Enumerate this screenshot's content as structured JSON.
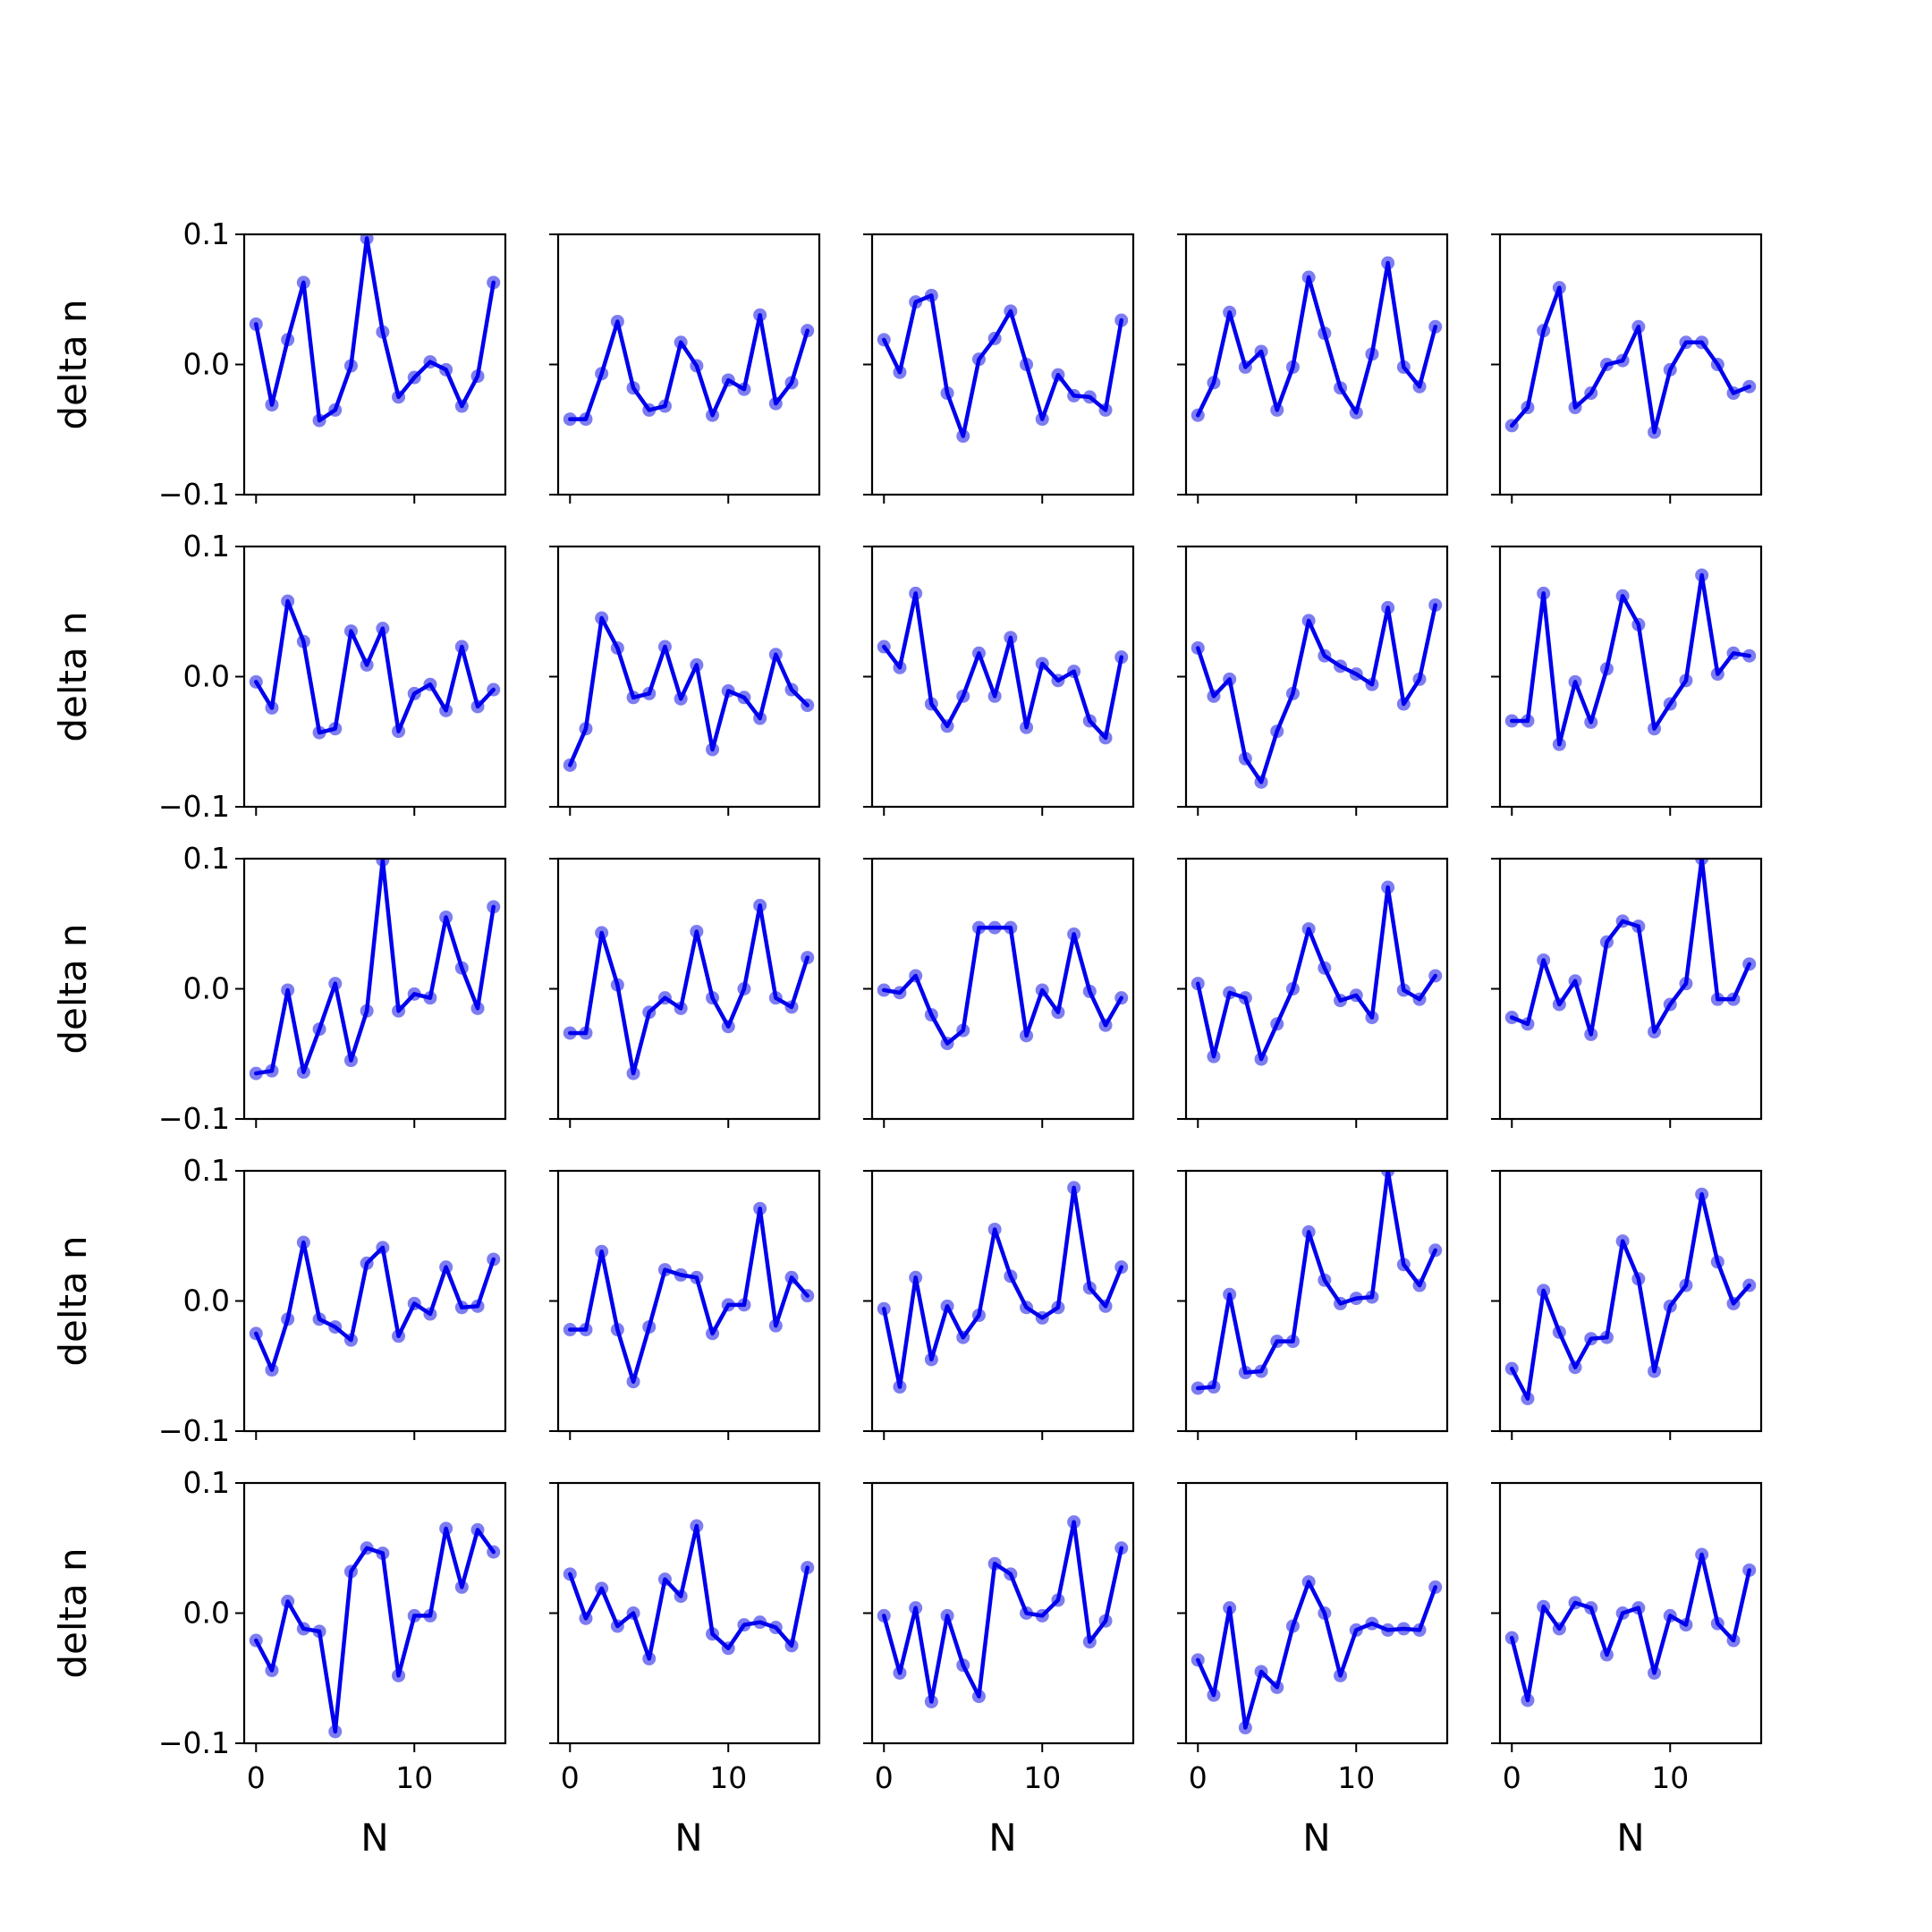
{
  "chart_data": {
    "type": "line",
    "layout": {
      "rows": 5,
      "cols": 5,
      "sharex": true,
      "sharey": true
    },
    "xlabel": "N",
    "ylabel": "delta n",
    "xlim": [
      -0.75,
      15.75
    ],
    "ylim": [
      -0.1,
      0.1
    ],
    "xticks": [
      0,
      10
    ],
    "xtick_labels": [
      "0",
      "10"
    ],
    "yticks": [
      -0.1,
      0.0,
      0.1
    ],
    "ytick_labels": [
      "−0.1",
      "0.0",
      "0.1"
    ],
    "line_color": "#0000ee",
    "marker_color": "#6666ee",
    "x": [
      0,
      1,
      2,
      3,
      4,
      5,
      6,
      7,
      8,
      9,
      10,
      11,
      12,
      13,
      14,
      15
    ],
    "panels": [
      [
        0.031,
        -0.031,
        0.019,
        0.063,
        -0.043,
        -0.035,
        -0.001,
        0.097,
        0.025,
        -0.025,
        -0.01,
        0.002,
        -0.004,
        -0.032,
        -0.009,
        0.063
      ],
      [
        -0.042,
        -0.042,
        -0.007,
        0.033,
        -0.018,
        -0.035,
        -0.032,
        0.017,
        -0.001,
        -0.039,
        -0.012,
        -0.019,
        0.038,
        -0.03,
        -0.014,
        0.026
      ],
      [
        0.019,
        -0.006,
        0.048,
        0.053,
        -0.022,
        -0.055,
        0.004,
        0.02,
        0.041,
        0.0,
        -0.042,
        -0.008,
        -0.024,
        -0.025,
        -0.035,
        0.034
      ],
      [
        -0.039,
        -0.014,
        0.04,
        -0.002,
        0.01,
        -0.035,
        -0.002,
        0.067,
        0.024,
        -0.018,
        -0.037,
        0.008,
        0.078,
        -0.002,
        -0.017,
        0.029
      ],
      [
        -0.047,
        -0.033,
        0.026,
        0.059,
        -0.033,
        -0.022,
        0.0,
        0.003,
        0.029,
        -0.052,
        -0.004,
        0.017,
        0.017,
        0.0,
        -0.022,
        -0.017
      ],
      [
        -0.004,
        -0.024,
        0.058,
        0.027,
        -0.043,
        -0.04,
        0.035,
        0.009,
        0.037,
        -0.042,
        -0.013,
        -0.006,
        -0.026,
        0.023,
        -0.023,
        -0.01
      ],
      [
        -0.068,
        -0.04,
        0.045,
        0.022,
        -0.016,
        -0.013,
        0.023,
        -0.017,
        0.009,
        -0.056,
        -0.011,
        -0.016,
        -0.032,
        0.017,
        -0.01,
        -0.022
      ],
      [
        0.023,
        0.007,
        0.064,
        -0.021,
        -0.038,
        -0.015,
        0.018,
        -0.015,
        0.03,
        -0.039,
        0.01,
        -0.003,
        0.004,
        -0.034,
        -0.047,
        0.015
      ],
      [
        0.022,
        -0.015,
        -0.002,
        -0.063,
        -0.081,
        -0.042,
        -0.013,
        0.043,
        0.016,
        0.008,
        0.002,
        -0.006,
        0.053,
        -0.021,
        -0.002,
        0.055
      ],
      [
        -0.034,
        -0.034,
        0.064,
        -0.052,
        -0.004,
        -0.035,
        0.006,
        0.062,
        0.04,
        -0.04,
        -0.021,
        -0.003,
        0.078,
        0.002,
        0.018,
        0.016
      ],
      [
        -0.065,
        -0.063,
        -0.001,
        -0.064,
        -0.031,
        0.004,
        -0.055,
        -0.017,
        0.099,
        -0.017,
        -0.004,
        -0.007,
        0.055,
        0.016,
        -0.015,
        0.063
      ],
      [
        -0.034,
        -0.034,
        0.043,
        0.003,
        -0.065,
        -0.018,
        -0.007,
        -0.015,
        0.044,
        -0.007,
        -0.029,
        0.0,
        0.064,
        -0.007,
        -0.014,
        0.024
      ],
      [
        -0.001,
        -0.003,
        0.01,
        -0.02,
        -0.042,
        -0.032,
        0.047,
        0.047,
        0.047,
        -0.036,
        -0.001,
        -0.018,
        0.042,
        -0.002,
        -0.028,
        -0.007
      ],
      [
        0.004,
        -0.052,
        -0.003,
        -0.007,
        -0.054,
        -0.027,
        0.0,
        0.046,
        0.016,
        -0.009,
        -0.005,
        -0.022,
        0.078,
        -0.001,
        -0.008,
        0.01
      ],
      [
        -0.022,
        -0.027,
        0.022,
        -0.012,
        0.006,
        -0.035,
        0.036,
        0.052,
        0.048,
        -0.033,
        -0.012,
        0.004,
        0.1,
        -0.008,
        -0.008,
        0.019
      ],
      [
        -0.025,
        -0.053,
        -0.014,
        0.045,
        -0.014,
        -0.02,
        -0.03,
        0.029,
        0.041,
        -0.027,
        -0.002,
        -0.01,
        0.026,
        -0.005,
        -0.004,
        0.032
      ],
      [
        -0.022,
        -0.022,
        0.038,
        -0.022,
        -0.062,
        -0.02,
        0.024,
        0.02,
        0.018,
        -0.025,
        -0.003,
        -0.003,
        0.071,
        -0.019,
        0.018,
        0.004
      ],
      [
        -0.006,
        -0.066,
        0.018,
        -0.045,
        -0.004,
        -0.028,
        -0.011,
        0.055,
        0.019,
        -0.005,
        -0.013,
        -0.005,
        0.087,
        0.01,
        -0.004,
        0.026
      ],
      [
        -0.067,
        -0.066,
        0.005,
        -0.055,
        -0.054,
        -0.031,
        -0.031,
        0.053,
        0.016,
        -0.002,
        0.002,
        0.003,
        0.1,
        0.028,
        0.012,
        0.039
      ],
      [
        -0.052,
        -0.075,
        0.008,
        -0.024,
        -0.051,
        -0.029,
        -0.028,
        0.046,
        0.017,
        -0.054,
        -0.004,
        0.012,
        0.082,
        0.03,
        -0.002,
        0.012
      ],
      [
        -0.021,
        -0.044,
        0.009,
        -0.012,
        -0.014,
        -0.091,
        0.032,
        0.05,
        0.046,
        -0.048,
        -0.002,
        -0.002,
        0.065,
        0.02,
        0.064,
        0.047
      ],
      [
        0.03,
        -0.004,
        0.019,
        -0.01,
        0.0,
        -0.035,
        0.026,
        0.013,
        0.067,
        -0.016,
        -0.027,
        -0.009,
        -0.007,
        -0.011,
        -0.025,
        0.035
      ],
      [
        -0.002,
        -0.046,
        0.004,
        -0.068,
        -0.002,
        -0.04,
        -0.064,
        0.038,
        0.03,
        0.0,
        -0.002,
        0.01,
        0.07,
        -0.022,
        -0.006,
        0.05
      ],
      [
        -0.036,
        -0.063,
        0.004,
        -0.088,
        -0.045,
        -0.057,
        -0.01,
        0.024,
        0.0,
        -0.048,
        -0.013,
        -0.008,
        -0.013,
        -0.012,
        -0.013,
        0.02
      ],
      [
        -0.019,
        -0.067,
        0.005,
        -0.012,
        0.008,
        0.004,
        -0.032,
        0.0,
        0.004,
        -0.046,
        -0.002,
        -0.009,
        0.045,
        -0.008,
        -0.021,
        0.033
      ]
    ]
  }
}
